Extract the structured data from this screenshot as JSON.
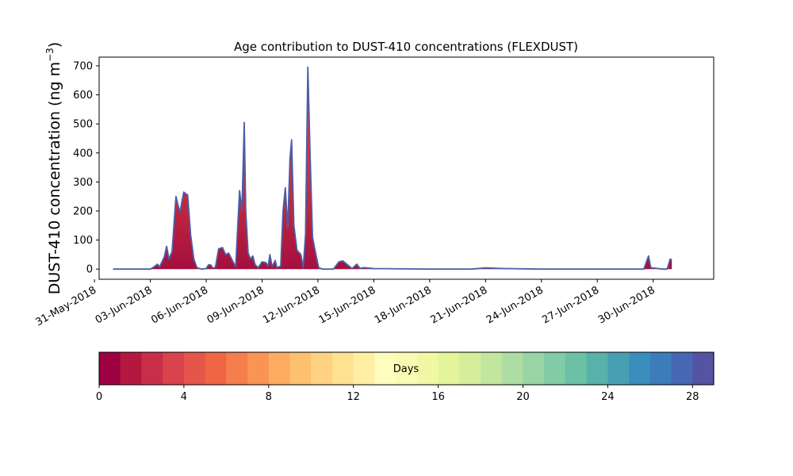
{
  "chart_data": {
    "type": "area",
    "title": "Age contribution to DUST-410 concentrations (FLEXDUST)",
    "ylabel_main": "DUST-410 concentration (ng m",
    "ylabel_sup": "−3",
    "ylabel_close": ")",
    "xlabel": "",
    "ylim": [
      -35,
      730
    ],
    "xlim": [
      "2018-05-31T06:00",
      "2018-07-03T06:00"
    ],
    "yticks": [
      0,
      100,
      200,
      300,
      400,
      500,
      600,
      700
    ],
    "xticks": [
      {
        "date": "2018-05-31",
        "label": "31-May-2018"
      },
      {
        "date": "2018-06-03",
        "label": "03-Jun-2018"
      },
      {
        "date": "2018-06-06",
        "label": "06-Jun-2018"
      },
      {
        "date": "2018-06-09",
        "label": "09-Jun-2018"
      },
      {
        "date": "2018-06-12",
        "label": "12-Jun-2018"
      },
      {
        "date": "2018-06-15",
        "label": "15-Jun-2018"
      },
      {
        "date": "2018-06-18",
        "label": "18-Jun-2018"
      },
      {
        "date": "2018-06-21",
        "label": "21-Jun-2018"
      },
      {
        "date": "2018-06-24",
        "label": "24-Jun-2018"
      },
      {
        "date": "2018-06-27",
        "label": "27-Jun-2018"
      },
      {
        "date": "2018-06-30",
        "label": "30-Jun-2018"
      }
    ],
    "grid": false,
    "series": [
      {
        "values": [
          [
            "2018-06-01T00:00",
            0
          ],
          [
            "2018-06-02T00:00",
            0
          ],
          [
            "2018-06-03T00:00",
            0
          ],
          [
            "2018-06-03T06:00",
            10
          ],
          [
            "2018-06-03T09:00",
            17
          ],
          [
            "2018-06-03T12:00",
            8
          ],
          [
            "2018-06-03T18:00",
            42
          ],
          [
            "2018-06-03T21:00",
            78
          ],
          [
            "2018-06-04T00:00",
            35
          ],
          [
            "2018-06-04T04:00",
            60
          ],
          [
            "2018-06-04T09:00",
            250
          ],
          [
            "2018-06-04T14:00",
            195
          ],
          [
            "2018-06-04T19:00",
            265
          ],
          [
            "2018-06-05T00:00",
            255
          ],
          [
            "2018-06-05T04:00",
            115
          ],
          [
            "2018-06-05T08:00",
            35
          ],
          [
            "2018-06-05T12:00",
            5
          ],
          [
            "2018-06-05T18:00",
            0
          ],
          [
            "2018-06-06T00:00",
            2
          ],
          [
            "2018-06-06T03:00",
            15
          ],
          [
            "2018-06-06T06:00",
            14
          ],
          [
            "2018-06-06T09:00",
            2
          ],
          [
            "2018-06-06T12:00",
            8
          ],
          [
            "2018-06-06T16:00",
            70
          ],
          [
            "2018-06-06T21:00",
            74
          ],
          [
            "2018-06-07T01:00",
            50
          ],
          [
            "2018-06-07T05:00",
            55
          ],
          [
            "2018-06-07T10:00",
            28
          ],
          [
            "2018-06-07T14:00",
            8
          ],
          [
            "2018-06-07T19:00",
            270
          ],
          [
            "2018-06-07T22:00",
            200
          ],
          [
            "2018-06-08T01:00",
            505
          ],
          [
            "2018-06-08T03:00",
            200
          ],
          [
            "2018-06-08T06:00",
            55
          ],
          [
            "2018-06-08T09:00",
            35
          ],
          [
            "2018-06-08T12:00",
            45
          ],
          [
            "2018-06-08T15:00",
            15
          ],
          [
            "2018-06-08T19:00",
            5
          ],
          [
            "2018-06-09T00:00",
            25
          ],
          [
            "2018-06-09T05:00",
            22
          ],
          [
            "2018-06-09T08:00",
            10
          ],
          [
            "2018-06-09T10:00",
            50
          ],
          [
            "2018-06-09T13:00",
            8
          ],
          [
            "2018-06-09T17:00",
            30
          ],
          [
            "2018-06-09T19:00",
            5
          ],
          [
            "2018-06-10T00:00",
            10
          ],
          [
            "2018-06-10T03:00",
            200
          ],
          [
            "2018-06-10T06:00",
            280
          ],
          [
            "2018-06-10T09:00",
            140
          ],
          [
            "2018-06-10T12:00",
            380
          ],
          [
            "2018-06-10T14:00",
            445
          ],
          [
            "2018-06-10T17:00",
            150
          ],
          [
            "2018-06-10T21:00",
            65
          ],
          [
            "2018-06-11T02:00",
            50
          ],
          [
            "2018-06-11T05:00",
            5
          ],
          [
            "2018-06-11T08:00",
            120
          ],
          [
            "2018-06-11T11:00",
            695
          ],
          [
            "2018-06-11T14:00",
            380
          ],
          [
            "2018-06-11T17:00",
            110
          ],
          [
            "2018-06-11T21:00",
            55
          ],
          [
            "2018-06-12T01:00",
            5
          ],
          [
            "2018-06-12T06:00",
            0
          ],
          [
            "2018-06-12T20:00",
            0
          ],
          [
            "2018-06-13T03:00",
            25
          ],
          [
            "2018-06-13T08:00",
            28
          ],
          [
            "2018-06-13T14:00",
            15
          ],
          [
            "2018-06-13T20:00",
            2
          ],
          [
            "2018-06-14T02:00",
            17
          ],
          [
            "2018-06-14T06:00",
            3
          ],
          [
            "2018-06-14T12:00",
            5
          ],
          [
            "2018-06-15T00:00",
            2
          ],
          [
            "2018-06-18T00:00",
            0
          ],
          [
            "2018-06-20T06:00",
            0
          ],
          [
            "2018-06-21T00:00",
            4
          ],
          [
            "2018-06-22T00:00",
            2
          ],
          [
            "2018-06-24T00:00",
            0
          ],
          [
            "2018-06-29T12:00",
            0
          ],
          [
            "2018-06-29T18:00",
            45
          ],
          [
            "2018-06-29T21:00",
            5
          ],
          [
            "2018-06-30T12:00",
            0
          ],
          [
            "2018-06-30T18:00",
            0
          ],
          [
            "2018-06-30T22:00",
            35
          ],
          [
            "2018-07-01T00:00",
            30
          ]
        ]
      }
    ],
    "line_color": "#4a5fa6",
    "fill_colors": [
      "#a50f3f",
      "#c42a3e",
      "#da3a47",
      "#e8534a"
    ],
    "colorbar": {
      "label": "Days",
      "range": [
        0,
        30
      ],
      "ticks": [
        0,
        4,
        8,
        12,
        16,
        20,
        24,
        28
      ],
      "colors": [
        "#9e0142",
        "#b5183f",
        "#c92e48",
        "#d9434d",
        "#e5564a",
        "#ef6645",
        "#f57e4c",
        "#f99455",
        "#fdac60",
        "#fdc06f",
        "#fed281",
        "#fee191",
        "#ffefa4",
        "#fffcbe",
        "#f8fbb1",
        "#f0f8a6",
        "#e4f49a",
        "#d5ee9b",
        "#c2e6a0",
        "#addda2",
        "#98d4a4",
        "#81cba6",
        "#6cc0a6",
        "#58b1aa",
        "#47a0b2",
        "#3a8ebb",
        "#3c7cbb",
        "#4767b2",
        "#5453a4"
      ]
    }
  }
}
